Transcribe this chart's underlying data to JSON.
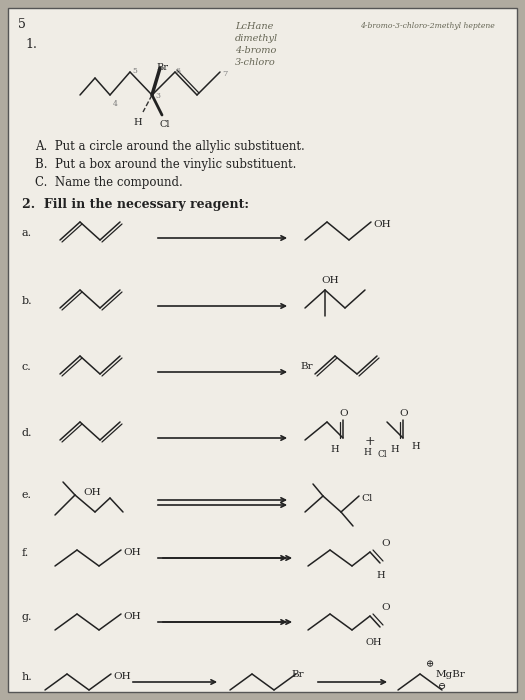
{
  "bg_color": "#b0aba0",
  "page_color": "#f0ede6",
  "text_color": "#1a1a1a",
  "dark_color": "#222222",
  "page_num": "5",
  "handwritten_top1": "LcHane",
  "handwritten_top2": "dimethyl",
  "handwritten_top3": "4-bromo",
  "handwritten_top4": "3-chloro",
  "handwritten_right": "4-bromo-3-chloro-2methyl heptene",
  "q1_label": "1.",
  "q1_A": "A.  Put a circle around the allylic substituent.",
  "q1_B": "B.  Put a box around the vinylic substituent.",
  "q1_C": "C.  Name the compound.",
  "q2_label": "2.  Fill in the necessary reagent:"
}
